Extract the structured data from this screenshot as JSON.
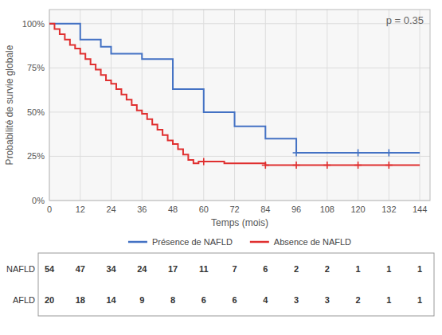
{
  "chart_data": {
    "type": "step",
    "xlabel": "Temps (mois)",
    "ylabel": "Probabilité de survie globale",
    "annotation": "p = 0.35",
    "xlim": [
      0,
      148
    ],
    "ylim": [
      0,
      1.08
    ],
    "xticks": [
      0,
      12,
      24,
      36,
      48,
      60,
      72,
      84,
      96,
      108,
      120,
      132,
      144
    ],
    "yticks": [
      {
        "value": 0,
        "label": "0%"
      },
      {
        "value": 0.25,
        "label": "25%"
      },
      {
        "value": 0.5,
        "label": "50%"
      },
      {
        "value": 0.75,
        "label": "75%"
      },
      {
        "value": 1.0,
        "label": "100%"
      }
    ],
    "grid": true,
    "legend": "bottom",
    "series": [
      {
        "name": "Présence de NAFLD",
        "color": "#4472C4",
        "marker": "plus",
        "x": [
          0,
          4,
          12,
          20,
          24,
          36,
          48,
          60,
          72,
          84,
          96,
          144
        ],
        "values": [
          1.0,
          1.0,
          0.91,
          0.87,
          0.83,
          0.8,
          0.63,
          0.5,
          0.42,
          0.35,
          0.27,
          0.27
        ],
        "censor_x": [
          96,
          120,
          132
        ],
        "censor_values": [
          0.27,
          0.27,
          0.27
        ]
      },
      {
        "name": "Absence de NAFLD",
        "color": "#E03030",
        "marker": "plus",
        "x": [
          0,
          2,
          4,
          6,
          8,
          10,
          12,
          14,
          16,
          18,
          20,
          22,
          24,
          26,
          28,
          30,
          32,
          34,
          36,
          38,
          40,
          42,
          44,
          46,
          48,
          50,
          52,
          54,
          56,
          58,
          60,
          62,
          64,
          66,
          68,
          70,
          72,
          78,
          84,
          144
        ],
        "values": [
          1.0,
          0.97,
          0.94,
          0.91,
          0.88,
          0.86,
          0.83,
          0.8,
          0.77,
          0.74,
          0.71,
          0.68,
          0.66,
          0.63,
          0.6,
          0.57,
          0.54,
          0.51,
          0.49,
          0.46,
          0.43,
          0.4,
          0.37,
          0.34,
          0.32,
          0.29,
          0.26,
          0.23,
          0.21,
          0.22,
          0.22,
          0.22,
          0.22,
          0.22,
          0.21,
          0.21,
          0.21,
          0.21,
          0.2,
          0.2
        ],
        "censor_x": [
          60,
          84,
          96,
          108,
          120,
          132
        ],
        "censor_values": [
          0.22,
          0.2,
          0.2,
          0.2,
          0.2,
          0.2
        ]
      }
    ],
    "risk_table": [
      {
        "label": "NAFLD",
        "values": [
          54,
          47,
          34,
          24,
          17,
          11,
          7,
          6,
          2,
          2,
          1,
          1,
          1
        ]
      },
      {
        "label": "AFLD",
        "values": [
          20,
          18,
          14,
          9,
          8,
          6,
          6,
          4,
          3,
          3,
          2,
          1,
          1
        ]
      }
    ]
  }
}
